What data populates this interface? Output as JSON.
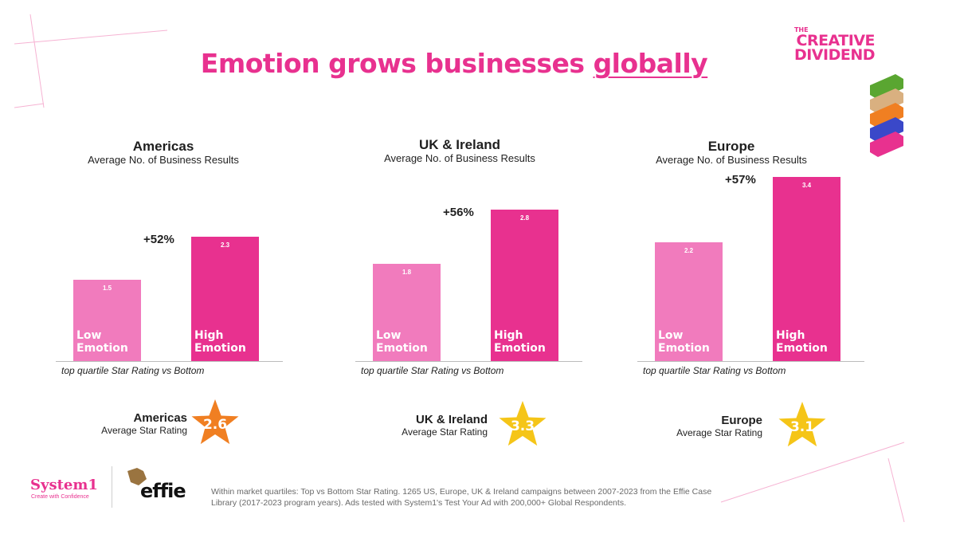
{
  "title": {
    "main": "Emotion grows businesses ",
    "underlined": "globally"
  },
  "brand": {
    "line1": "THE",
    "line2": "CREATIVE",
    "line3": "DIVIDEND"
  },
  "colors": {
    "accent": "#e8318f",
    "low_bar": "#f17bbd",
    "high_bar": "#e8318f",
    "star_orange": "#f07f22",
    "star_yellow": "#f5c518"
  },
  "chart_data": [
    {
      "type": "bar",
      "title": "Americas",
      "subtitle": "Average No. of Business Results",
      "categories": [
        "Low Emotion",
        "High Emotion"
      ],
      "values": [
        1.5,
        2.3
      ],
      "value_labels": [
        "1.5",
        "2.3"
      ],
      "annotation": "+52%",
      "note": "top quartile Star Rating vs Bottom",
      "ylim": [
        0,
        3.4
      ]
    },
    {
      "type": "bar",
      "title": "UK & Ireland",
      "subtitle": "Average No. of Business Results",
      "categories": [
        "Low Emotion",
        "High Emotion"
      ],
      "values": [
        1.8,
        2.8
      ],
      "value_labels": [
        "1.8",
        "2.8"
      ],
      "annotation": "+56%",
      "note": "top quartile Star Rating vs Bottom",
      "ylim": [
        0,
        3.4
      ]
    },
    {
      "type": "bar",
      "title": "Europe",
      "subtitle": "Average No. of Business Results",
      "categories": [
        "Low Emotion",
        "High Emotion"
      ],
      "values": [
        2.2,
        3.4
      ],
      "value_labels": [
        "2.2",
        "3.4"
      ],
      "annotation": "+57%",
      "note": "top quartile Star Rating vs Bottom",
      "ylim": [
        0,
        3.4
      ]
    }
  ],
  "bar_labels": {
    "low": {
      "line1": "Low",
      "line2": "Emotion"
    },
    "high": {
      "line1": "High",
      "line2": "Emotion"
    }
  },
  "star_ratings": [
    {
      "region": "Americas",
      "label": "Average Star Rating",
      "value": "2.6",
      "color": "#f07f22"
    },
    {
      "region": "UK & Ireland",
      "label": "Average Star Rating",
      "value": "3.3",
      "color": "#f5c518"
    },
    {
      "region": "Europe",
      "label": "Average Star Rating",
      "value": "3.1",
      "color": "#f5c518"
    }
  ],
  "footer": {
    "system1": "System1",
    "system1_tagline": "Create with Confidence",
    "effie": "effie",
    "note": "Within market quartiles: Top vs Bottom Star Rating. 1265 US, Europe, UK & Ireland campaigns between 2007-2023 from the Effie Case Library (2017-2023 program years). Ads tested with System1's Test Your Ad with 200,000+ Global Respondents."
  }
}
